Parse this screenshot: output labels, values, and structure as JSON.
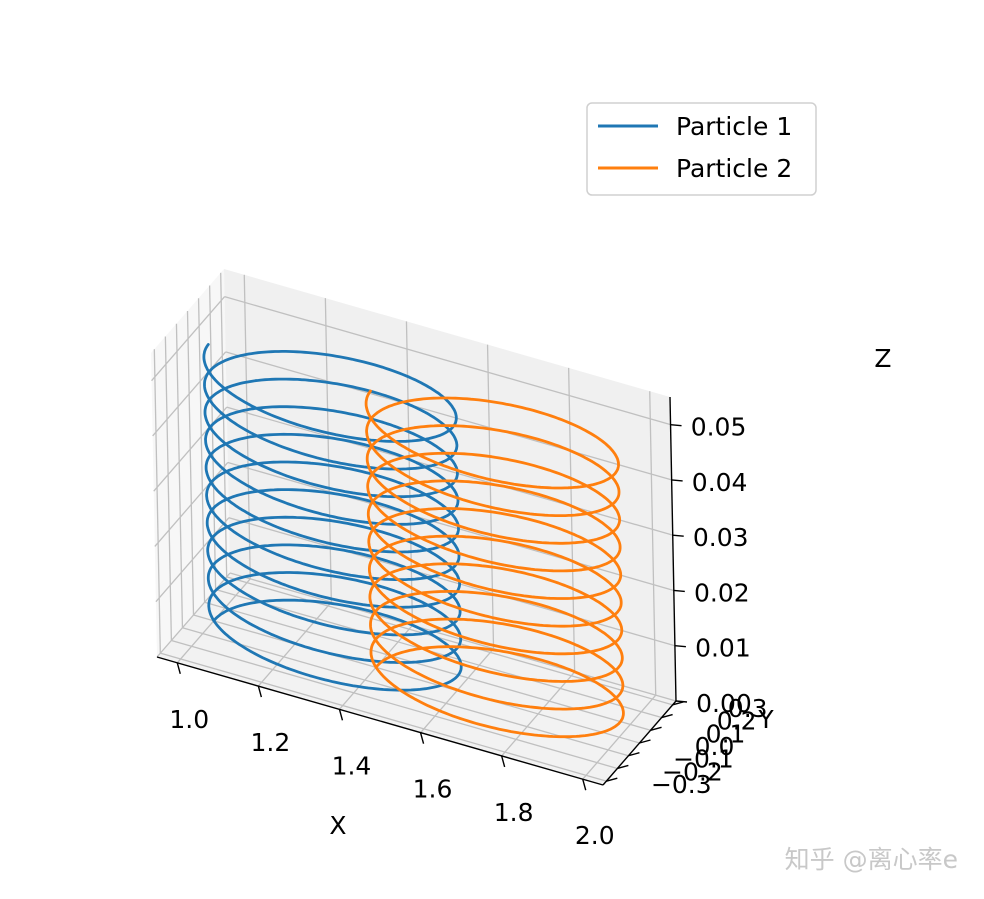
{
  "chart_data": {
    "type": "line",
    "projection": "3d",
    "xlabel": "X",
    "ylabel": "Y",
    "zlabel": "Z",
    "xlim": [
      0.95,
      2.05
    ],
    "ylim": [
      -0.33,
      0.33
    ],
    "zlim": [
      0.0,
      0.055
    ],
    "x_ticks": [
      {
        "v": 1.0,
        "label": "1.0"
      },
      {
        "v": 1.2,
        "label": "1.2"
      },
      {
        "v": 1.4,
        "label": "1.4"
      },
      {
        "v": 1.6,
        "label": "1.6"
      },
      {
        "v": 1.8,
        "label": "1.8"
      },
      {
        "v": 2.0,
        "label": "2.0"
      }
    ],
    "y_ticks": [
      {
        "v": -0.3,
        "label": "−0.3"
      },
      {
        "v": -0.2,
        "label": "−0.2"
      },
      {
        "v": -0.1,
        "label": "−0.1"
      },
      {
        "v": 0.0,
        "label": "0.0"
      },
      {
        "v": 0.1,
        "label": "0.1"
      },
      {
        "v": 0.2,
        "label": "0.2"
      },
      {
        "v": 0.3,
        "label": "0.3"
      }
    ],
    "z_ticks": [
      {
        "v": 0.0,
        "label": "0.00"
      },
      {
        "v": 0.01,
        "label": "0.01"
      },
      {
        "v": 0.02,
        "label": "0.02"
      },
      {
        "v": 0.03,
        "label": "0.03"
      },
      {
        "v": 0.04,
        "label": "0.04"
      },
      {
        "v": 0.05,
        "label": "0.05"
      }
    ],
    "grid": true,
    "legend_position": "top-right",
    "series": [
      {
        "name": "Particle 1",
        "color": "#1f77b4",
        "x_center": 1.3,
        "y_center": 0.0,
        "radius": 0.3,
        "z_start": 0.0,
        "z_end": 0.05,
        "turns": 10
      },
      {
        "name": "Particle 2",
        "color": "#ff7f0e",
        "x_center": 1.7,
        "y_center": 0.0,
        "radius": 0.3,
        "z_start": 0.0,
        "z_end": 0.05,
        "turns": 10
      }
    ]
  },
  "watermark": "知乎 @离心率e"
}
